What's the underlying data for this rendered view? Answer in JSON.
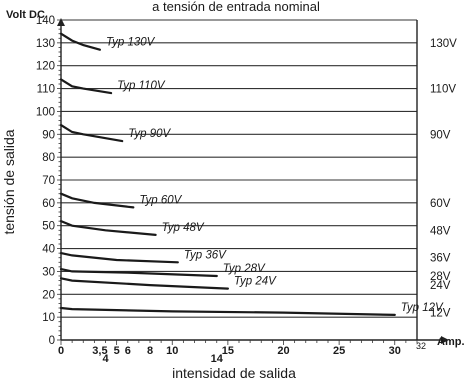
{
  "chart_data": {
    "type": "line",
    "title": "a tensión de entrada nominal",
    "ylabel": "tensión de salida",
    "xlabel": "intensidad de salida",
    "y_unit": "Volt DC",
    "x_unit": "Amp.",
    "xlim": [
      0,
      32
    ],
    "ylim": [
      0,
      140
    ],
    "x_ticks_row1": [
      "0",
      "3,5",
      "5",
      "6",
      "8",
      "10",
      "15",
      "20",
      "25",
      "30",
      "32"
    ],
    "x_ticks_row2": [
      "4",
      "14"
    ],
    "y_ticks": [
      "0",
      "10",
      "20",
      "30",
      "40",
      "50",
      "60",
      "70",
      "80",
      "90",
      "100",
      "110",
      "120",
      "130",
      "140"
    ],
    "right_labels": [
      "130V",
      "110V",
      "90V",
      "60V",
      "48V",
      "36V",
      "28V",
      "24V",
      "12V"
    ],
    "grid": true,
    "series": [
      {
        "name": "Typ 130V",
        "x": [
          0,
          1,
          2,
          3.5
        ],
        "y": [
          134,
          131,
          129,
          127
        ]
      },
      {
        "name": "Typ 110V",
        "x": [
          0,
          1,
          2,
          4.5
        ],
        "y": [
          114,
          111,
          110,
          108
        ]
      },
      {
        "name": "Typ 90V",
        "x": [
          0,
          1,
          2,
          5.5
        ],
        "y": [
          94,
          91,
          90,
          87
        ]
      },
      {
        "name": "Typ 60V",
        "x": [
          0,
          1,
          3,
          6.5
        ],
        "y": [
          64,
          62,
          60,
          58
        ]
      },
      {
        "name": "Typ 48V",
        "x": [
          0,
          1,
          4,
          8.5
        ],
        "y": [
          52,
          50,
          48,
          46
        ]
      },
      {
        "name": "Typ 36V",
        "x": [
          0,
          1,
          5,
          10.5
        ],
        "y": [
          38,
          37,
          35,
          34
        ]
      },
      {
        "name": "Typ 28V",
        "x": [
          0,
          1,
          6,
          14
        ],
        "y": [
          31,
          30,
          29.5,
          28
        ]
      },
      {
        "name": "Typ 24V",
        "x": [
          0,
          1,
          8,
          15
        ],
        "y": [
          27,
          26,
          24,
          22.5
        ]
      },
      {
        "name": "Typ 12V",
        "x": [
          0,
          1,
          10,
          20,
          30
        ],
        "y": [
          14,
          13.5,
          12.5,
          12,
          11
        ]
      }
    ]
  }
}
